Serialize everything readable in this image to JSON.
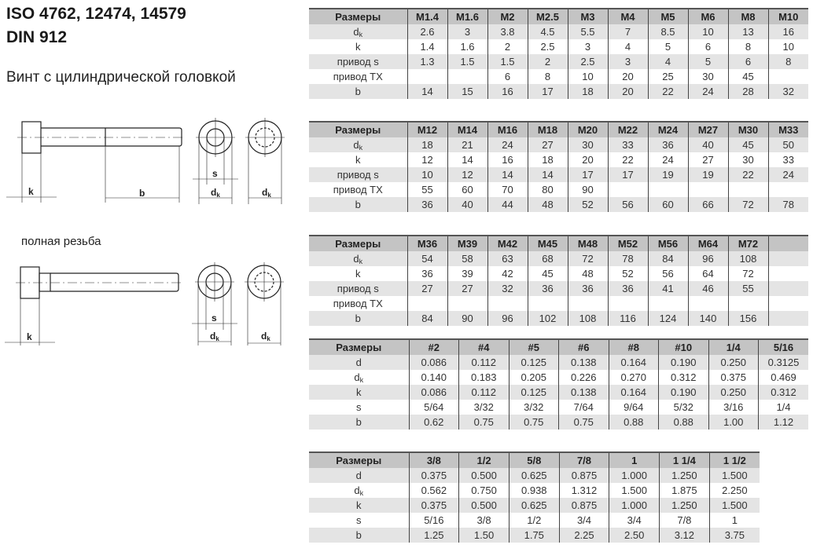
{
  "header": {
    "title_line1": "ISO 4762, 12474, 14579",
    "title_line2": "DIN 912",
    "subtitle": "Винт с цилиндрической головкой",
    "full_thread_note": "полная резьба"
  },
  "drawing_labels": {
    "k": "k",
    "b": "b",
    "s": "s",
    "dk_main": "d",
    "dk_sub": "k"
  },
  "tables": [
    {
      "header": [
        "Размеры",
        "M1.4",
        "M1.6",
        "M2",
        "M2.5",
        "M3",
        "M4",
        "M5",
        "M6",
        "M8",
        "M10"
      ],
      "rows": [
        {
          "label": "d",
          "sub": "k",
          "values": [
            "2.6",
            "3",
            "3.8",
            "4.5",
            "5.5",
            "7",
            "8.5",
            "10",
            "13",
            "16"
          ]
        },
        {
          "label": "k",
          "values": [
            "1.4",
            "1.6",
            "2",
            "2.5",
            "3",
            "4",
            "5",
            "6",
            "8",
            "10"
          ]
        },
        {
          "label": "привод s",
          "values": [
            "1.3",
            "1.5",
            "1.5",
            "2",
            "2.5",
            "3",
            "4",
            "5",
            "6",
            "8"
          ]
        },
        {
          "label": "привод TX",
          "values": [
            "",
            "",
            "6",
            "8",
            "10",
            "20",
            "25",
            "30",
            "45",
            ""
          ]
        },
        {
          "label": "b",
          "values": [
            "14",
            "15",
            "16",
            "17",
            "18",
            "20",
            "22",
            "24",
            "28",
            "32"
          ]
        }
      ]
    },
    {
      "header": [
        "Размеры",
        "M12",
        "M14",
        "M16",
        "M18",
        "M20",
        "M22",
        "M24",
        "M27",
        "M30",
        "M33"
      ],
      "rows": [
        {
          "label": "d",
          "sub": "k",
          "values": [
            "18",
            "21",
            "24",
            "27",
            "30",
            "33",
            "36",
            "40",
            "45",
            "50"
          ]
        },
        {
          "label": "k",
          "values": [
            "12",
            "14",
            "16",
            "18",
            "20",
            "22",
            "24",
            "27",
            "30",
            "33"
          ]
        },
        {
          "label": "привод s",
          "values": [
            "10",
            "12",
            "14",
            "14",
            "17",
            "17",
            "19",
            "19",
            "22",
            "24"
          ]
        },
        {
          "label": "привод TX",
          "values": [
            "55",
            "60",
            "70",
            "80",
            "90",
            "",
            "",
            "",
            "",
            ""
          ]
        },
        {
          "label": "b",
          "values": [
            "36",
            "40",
            "44",
            "48",
            "52",
            "56",
            "60",
            "66",
            "72",
            "78"
          ]
        }
      ]
    },
    {
      "header": [
        "Размеры",
        "M36",
        "M39",
        "M42",
        "M45",
        "M48",
        "M52",
        "M56",
        "M64",
        "M72",
        ""
      ],
      "rows": [
        {
          "label": "d",
          "sub": "k",
          "values": [
            "54",
            "58",
            "63",
            "68",
            "72",
            "78",
            "84",
            "96",
            "108",
            ""
          ]
        },
        {
          "label": "k",
          "values": [
            "36",
            "39",
            "42",
            "45",
            "48",
            "52",
            "56",
            "64",
            "72",
            ""
          ]
        },
        {
          "label": "привод s",
          "values": [
            "27",
            "27",
            "32",
            "36",
            "36",
            "36",
            "41",
            "46",
            "55",
            ""
          ]
        },
        {
          "label": "привод TX",
          "values": [
            "",
            "",
            "",
            "",
            "",
            "",
            "",
            "",
            "",
            ""
          ]
        },
        {
          "label": "b",
          "values": [
            "84",
            "90",
            "96",
            "102",
            "108",
            "116",
            "124",
            "140",
            "156",
            ""
          ]
        }
      ]
    },
    {
      "header": [
        "Размеры",
        "#2",
        "#4",
        "#5",
        "#6",
        "#8",
        "#10",
        "1/4",
        "5/16"
      ],
      "rows": [
        {
          "label": "d",
          "values": [
            "0.086",
            "0.112",
            "0.125",
            "0.138",
            "0.164",
            "0.190",
            "0.250",
            "0.3125"
          ]
        },
        {
          "label": "d",
          "sub": "k",
          "values": [
            "0.140",
            "0.183",
            "0.205",
            "0.226",
            "0.270",
            "0.312",
            "0.375",
            "0.469"
          ]
        },
        {
          "label": "k",
          "values": [
            "0.086",
            "0.112",
            "0.125",
            "0.138",
            "0.164",
            "0.190",
            "0.250",
            "0.312"
          ]
        },
        {
          "label": "s",
          "values": [
            "5/64",
            "3/32",
            "3/32",
            "7/64",
            "9/64",
            "5/32",
            "3/16",
            "1/4"
          ]
        },
        {
          "label": "b",
          "values": [
            "0.62",
            "0.75",
            "0.75",
            "0.75",
            "0.88",
            "0.88",
            "1.00",
            "1.12"
          ]
        }
      ]
    },
    {
      "header": [
        "Размеры",
        "3/8",
        "1/2",
        "5/8",
        "7/8",
        "1",
        "1 1/4",
        "1 1/2"
      ],
      "rows": [
        {
          "label": "d",
          "values": [
            "0.375",
            "0.500",
            "0.625",
            "0.875",
            "1.000",
            "1.250",
            "1.500"
          ]
        },
        {
          "label": "d",
          "sub": "k",
          "values": [
            "0.562",
            "0.750",
            "0.938",
            "1.312",
            "1.500",
            "1.875",
            "2.250"
          ]
        },
        {
          "label": "k",
          "values": [
            "0.375",
            "0.500",
            "0.625",
            "0.875",
            "1.000",
            "1.250",
            "1.500"
          ]
        },
        {
          "label": "s",
          "values": [
            "5/16",
            "3/8",
            "1/2",
            "3/4",
            "3/4",
            "7/8",
            "1"
          ]
        },
        {
          "label": "b",
          "values": [
            "1.25",
            "1.50",
            "1.75",
            "2.25",
            "2.50",
            "3.12",
            "3.75"
          ]
        }
      ]
    }
  ]
}
